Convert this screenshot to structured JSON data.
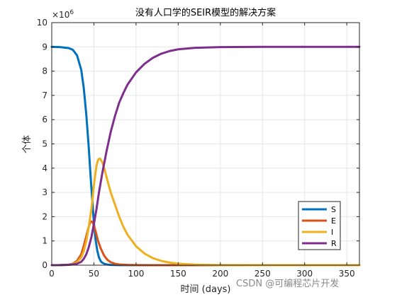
{
  "chart_data": {
    "type": "line",
    "title": "没有人口学的SEIR模型的解决方案",
    "xlabel": "时间 (days)",
    "ylabel": "个体",
    "y_exponent_base": "×10",
    "y_exponent_power": "6",
    "xlim": [
      0,
      365
    ],
    "ylim": [
      0,
      10000000
    ],
    "x_ticks": [
      0,
      50,
      100,
      150,
      200,
      250,
      300,
      350
    ],
    "y_ticks": [
      0,
      1,
      2,
      3,
      4,
      5,
      6,
      7,
      8,
      9,
      10
    ],
    "grid": true,
    "legend_position": "bottom-right",
    "series": [
      {
        "name": "S",
        "color": "#0072BD",
        "points": [
          [
            0,
            9000000
          ],
          [
            10,
            8990000
          ],
          [
            20,
            8950000
          ],
          [
            25,
            8880000
          ],
          [
            30,
            8650000
          ],
          [
            35,
            8050000
          ],
          [
            38,
            7300000
          ],
          [
            41,
            6200000
          ],
          [
            44,
            4800000
          ],
          [
            46,
            3700000
          ],
          [
            48,
            2700000
          ],
          [
            50,
            1750000
          ],
          [
            52,
            1050000
          ],
          [
            54,
            600000
          ],
          [
            56,
            320000
          ],
          [
            58,
            170000
          ],
          [
            60,
            100000
          ],
          [
            63,
            50000
          ],
          [
            66,
            25000
          ],
          [
            70,
            12000
          ],
          [
            80,
            4000
          ],
          [
            100,
            1000
          ],
          [
            150,
            300
          ],
          [
            365,
            100
          ]
        ]
      },
      {
        "name": "E",
        "color": "#D95319",
        "points": [
          [
            0,
            0
          ],
          [
            10,
            5000
          ],
          [
            20,
            20000
          ],
          [
            25,
            60000
          ],
          [
            30,
            180000
          ],
          [
            35,
            450000
          ],
          [
            38,
            800000
          ],
          [
            41,
            1200000
          ],
          [
            44,
            1600000
          ],
          [
            46,
            1800000
          ],
          [
            48,
            1800000
          ],
          [
            50,
            1650000
          ],
          [
            52,
            1400000
          ],
          [
            55,
            1000000
          ],
          [
            58,
            700000
          ],
          [
            62,
            400000
          ],
          [
            66,
            220000
          ],
          [
            70,
            120000
          ],
          [
            75,
            60000
          ],
          [
            80,
            30000
          ],
          [
            90,
            10000
          ],
          [
            100,
            4000
          ],
          [
            120,
            1000
          ],
          [
            150,
            200
          ],
          [
            365,
            0
          ]
        ]
      },
      {
        "name": "I",
        "color": "#EDB120",
        "points": [
          [
            0,
            0
          ],
          [
            10,
            5000
          ],
          [
            20,
            15000
          ],
          [
            25,
            40000
          ],
          [
            30,
            120000
          ],
          [
            35,
            320000
          ],
          [
            38,
            580000
          ],
          [
            41,
            1000000
          ],
          [
            44,
            1600000
          ],
          [
            47,
            2300000
          ],
          [
            50,
            3300000
          ],
          [
            53,
            4100000
          ],
          [
            55,
            4350000
          ],
          [
            57,
            4400000
          ],
          [
            60,
            4250000
          ],
          [
            63,
            3900000
          ],
          [
            66,
            3500000
          ],
          [
            70,
            3000000
          ],
          [
            75,
            2500000
          ],
          [
            80,
            2000000
          ],
          [
            85,
            1580000
          ],
          [
            90,
            1250000
          ],
          [
            100,
            780000
          ],
          [
            110,
            480000
          ],
          [
            120,
            290000
          ],
          [
            130,
            175000
          ],
          [
            140,
            105000
          ],
          [
            150,
            63000
          ],
          [
            170,
            23000
          ],
          [
            200,
            5000
          ],
          [
            250,
            400
          ],
          [
            365,
            0
          ]
        ]
      },
      {
        "name": "R",
        "color": "#7E2F8E",
        "points": [
          [
            0,
            0
          ],
          [
            10,
            2000
          ],
          [
            20,
            15000
          ],
          [
            25,
            30000
          ],
          [
            30,
            60000
          ],
          [
            35,
            140000
          ],
          [
            38,
            260000
          ],
          [
            41,
            450000
          ],
          [
            44,
            750000
          ],
          [
            47,
            1150000
          ],
          [
            50,
            1700000
          ],
          [
            53,
            2300000
          ],
          [
            56,
            3000000
          ],
          [
            60,
            3800000
          ],
          [
            65,
            4700000
          ],
          [
            70,
            5500000
          ],
          [
            75,
            6150000
          ],
          [
            80,
            6700000
          ],
          [
            85,
            7100000
          ],
          [
            90,
            7450000
          ],
          [
            100,
            7950000
          ],
          [
            110,
            8300000
          ],
          [
            120,
            8550000
          ],
          [
            130,
            8720000
          ],
          [
            140,
            8830000
          ],
          [
            150,
            8900000
          ],
          [
            170,
            8960000
          ],
          [
            200,
            8990000
          ],
          [
            250,
            9000000
          ],
          [
            365,
            9000000
          ]
        ]
      }
    ]
  },
  "watermark": "CSDN @可编程芯片开发"
}
